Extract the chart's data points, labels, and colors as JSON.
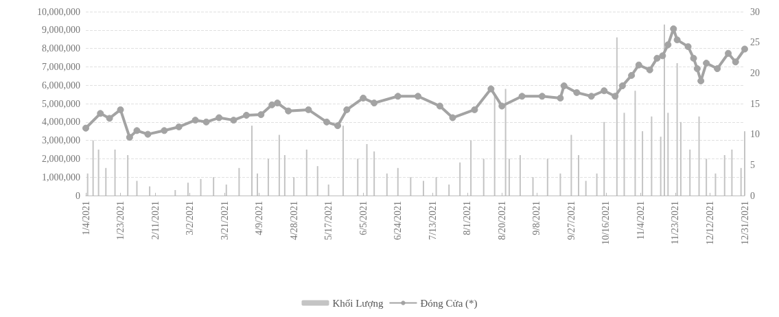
{
  "chart_data": {
    "type": "bar",
    "xlim": [
      "2021-01-04",
      "2021-12-31"
    ],
    "xticks": [
      {
        "value": "2021-01-04",
        "label": "1/4/2021"
      },
      {
        "value": "2021-01-23",
        "label": "1/23/2021"
      },
      {
        "value": "2021-02-11",
        "label": "2/11/2021"
      },
      {
        "value": "2021-03-02",
        "label": "3/2/2021"
      },
      {
        "value": "2021-03-21",
        "label": "3/21/2021"
      },
      {
        "value": "2021-04-09",
        "label": "4/9/2021"
      },
      {
        "value": "2021-04-28",
        "label": "4/28/2021"
      },
      {
        "value": "2021-05-17",
        "label": "5/17/2021"
      },
      {
        "value": "2021-06-05",
        "label": "6/5/2021"
      },
      {
        "value": "2021-06-24",
        "label": "6/24/2021"
      },
      {
        "value": "2021-07-13",
        "label": "7/13/2021"
      },
      {
        "value": "2021-08-01",
        "label": "8/1/2021"
      },
      {
        "value": "2021-08-20",
        "label": "8/20/2021"
      },
      {
        "value": "2021-09-08",
        "label": "9/8/2021"
      },
      {
        "value": "2021-09-27",
        "label": "9/27/2021"
      },
      {
        "value": "2021-10-16",
        "label": "10/16/2021"
      },
      {
        "value": "2021-11-04",
        "label": "11/4/2021"
      },
      {
        "value": "2021-11-23",
        "label": "11/23/2021"
      },
      {
        "value": "2021-12-12",
        "label": "12/12/2021"
      },
      {
        "value": "2021-12-31",
        "label": "12/31/2021"
      }
    ],
    "ylim": [
      0,
      10000000
    ],
    "yticks": [
      {
        "value": 0,
        "label": "0"
      },
      {
        "value": 1000000,
        "label": "1,000,000"
      },
      {
        "value": 2000000,
        "label": "2,000,000"
      },
      {
        "value": 3000000,
        "label": "3,000,000"
      },
      {
        "value": 4000000,
        "label": "4,000,000"
      },
      {
        "value": 5000000,
        "label": "5,000,000"
      },
      {
        "value": 6000000,
        "label": "6,000,000"
      },
      {
        "value": 7000000,
        "label": "7,000,000"
      },
      {
        "value": 8000000,
        "label": "8,000,000"
      },
      {
        "value": 9000000,
        "label": "9,000,000"
      },
      {
        "value": 10000000,
        "label": "10,000,000"
      }
    ],
    "y2lim": [
      0,
      30
    ],
    "y2ticks": [
      0,
      5,
      10,
      15,
      20,
      25,
      30
    ],
    "grid": "y",
    "legend": "bottom",
    "series": [
      {
        "name": "Khối Lượng",
        "color": "#c4c4c4",
        "x": [
          "2021-01-05",
          "2021-01-08",
          "2021-01-11",
          "2021-01-15",
          "2021-01-20",
          "2021-01-27",
          "2021-02-01",
          "2021-02-08",
          "2021-02-22",
          "2021-03-01",
          "2021-03-08",
          "2021-03-15",
          "2021-03-22",
          "2021-03-29",
          "2021-04-05",
          "2021-04-08",
          "2021-04-14",
          "2021-04-20",
          "2021-04-23",
          "2021-04-28",
          "2021-05-05",
          "2021-05-11",
          "2021-05-17",
          "2021-05-25",
          "2021-06-02",
          "2021-06-07",
          "2021-06-11",
          "2021-06-18",
          "2021-06-24",
          "2021-07-01",
          "2021-07-08",
          "2021-07-15",
          "2021-07-22",
          "2021-07-28",
          "2021-08-03",
          "2021-08-10",
          "2021-08-16",
          "2021-08-22",
          "2021-08-24",
          "2021-08-30",
          "2021-09-06",
          "2021-09-14",
          "2021-09-21",
          "2021-09-27",
          "2021-10-01",
          "2021-10-05",
          "2021-10-11",
          "2021-10-15",
          "2021-10-22",
          "2021-10-26",
          "2021-11-01",
          "2021-11-05",
          "2021-11-10",
          "2021-11-15",
          "2021-11-17",
          "2021-11-19",
          "2021-11-24",
          "2021-11-26",
          "2021-12-01",
          "2021-12-06",
          "2021-12-10",
          "2021-12-15",
          "2021-12-20",
          "2021-12-24",
          "2021-12-29",
          "2021-12-31"
        ],
        "values": [
          1200000,
          3000000,
          2500000,
          1500000,
          2500000,
          2200000,
          800000,
          500000,
          300000,
          700000,
          900000,
          1000000,
          600000,
          1500000,
          3800000,
          1200000,
          2000000,
          3300000,
          2200000,
          1000000,
          2500000,
          1600000,
          600000,
          3800000,
          2000000,
          2800000,
          2400000,
          1200000,
          1500000,
          1000000,
          800000,
          1000000,
          600000,
          1800000,
          3000000,
          2000000,
          5500000,
          5800000,
          2000000,
          2200000,
          1000000,
          2000000,
          1200000,
          3300000,
          2200000,
          800000,
          1200000,
          4000000,
          8600000,
          4500000,
          5700000,
          3500000,
          4300000,
          3200000,
          9300000,
          4500000,
          7200000,
          4000000,
          2500000,
          4300000,
          2000000,
          1200000,
          2200000,
          2500000,
          1500000,
          3500000
        ]
      },
      {
        "name": "Đóng Cửa (*)",
        "type": "line",
        "axis": "y2",
        "color": "#a3a3a3",
        "marker": "circle",
        "x": [
          "2021-01-04",
          "2021-01-12",
          "2021-01-17",
          "2021-01-23",
          "2021-01-28",
          "2021-02-01",
          "2021-02-07",
          "2021-02-16",
          "2021-02-24",
          "2021-03-05",
          "2021-03-11",
          "2021-03-18",
          "2021-03-26",
          "2021-04-02",
          "2021-04-10",
          "2021-04-16",
          "2021-04-19",
          "2021-04-25",
          "2021-05-06",
          "2021-05-16",
          "2021-05-22",
          "2021-05-27",
          "2021-06-05",
          "2021-06-11",
          "2021-06-24",
          "2021-07-05",
          "2021-07-17",
          "2021-07-24",
          "2021-08-05",
          "2021-08-14",
          "2021-08-20",
          "2021-08-31",
          "2021-09-11",
          "2021-09-21",
          "2021-09-23",
          "2021-09-30",
          "2021-10-08",
          "2021-10-15",
          "2021-10-21",
          "2021-10-25",
          "2021-10-30",
          "2021-11-03",
          "2021-11-09",
          "2021-11-13",
          "2021-11-16",
          "2021-11-19",
          "2021-11-22",
          "2021-11-24",
          "2021-11-30",
          "2021-12-03",
          "2021-12-05",
          "2021-12-07",
          "2021-12-10",
          "2021-12-16",
          "2021-12-22",
          "2021-12-26",
          "2021-12-31"
        ],
        "values": [
          11,
          13.4,
          12.6,
          14,
          9.5,
          10.6,
          10,
          10.6,
          11.2,
          12.3,
          12,
          12.7,
          12.3,
          13.1,
          13.2,
          14.8,
          15.1,
          13.8,
          14,
          12,
          11.4,
          14,
          15.9,
          15.1,
          16.2,
          16.2,
          14.6,
          12.7,
          14,
          17.4,
          14.6,
          16.2,
          16.2,
          15.9,
          17.9,
          16.8,
          16.2,
          17.1,
          16.2,
          17.9,
          19.6,
          21.3,
          20.5,
          22.4,
          22.8,
          24.6,
          27.2,
          25.4,
          24.3,
          22.4,
          20.7,
          18.7,
          21.6,
          20.7,
          23.2,
          21.8,
          23.9
        ]
      }
    ]
  }
}
